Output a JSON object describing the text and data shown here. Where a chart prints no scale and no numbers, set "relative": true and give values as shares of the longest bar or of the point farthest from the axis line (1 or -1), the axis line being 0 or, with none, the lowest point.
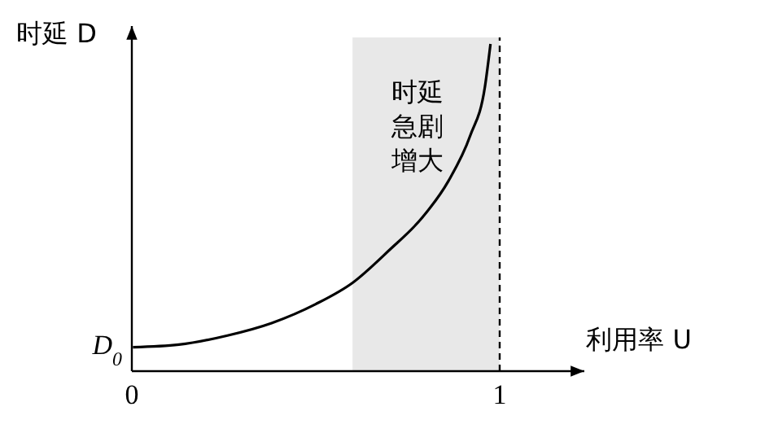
{
  "chart_data": {
    "type": "line",
    "relative": true,
    "xlabel": "利用率 U",
    "ylabel": "时延 D",
    "xlim": [
      0,
      1.23
    ],
    "xticks": [
      0,
      1
    ],
    "grid": false,
    "marker": "none",
    "line_style": "solid",
    "series": [
      {
        "color": "#000000",
        "x": [
          0.003,
          0.128,
          0.26,
          0.38,
          0.5,
          0.6,
          0.7,
          0.79,
          0.86,
          0.92,
          0.96,
          0.975
        ],
        "values": [
          0.073,
          0.081,
          0.109,
          0.147,
          0.205,
          0.27,
          0.37,
          0.47,
          0.58,
          0.72,
          0.87,
          1.0
        ]
      }
    ],
    "ref_lines": [
      {
        "axis": "x",
        "value": 1,
        "color": "#000000",
        "line_style": "dashed"
      }
    ],
    "bands": [
      {
        "axis": "x",
        "from": 0.6,
        "to": 1,
        "label": "时延急剧增大",
        "color": "#e8e8e8"
      }
    ],
    "annotations": [
      {
        "text": "D$_{0}$",
        "x": 0,
        "y": 0.073
      }
    ]
  }
}
